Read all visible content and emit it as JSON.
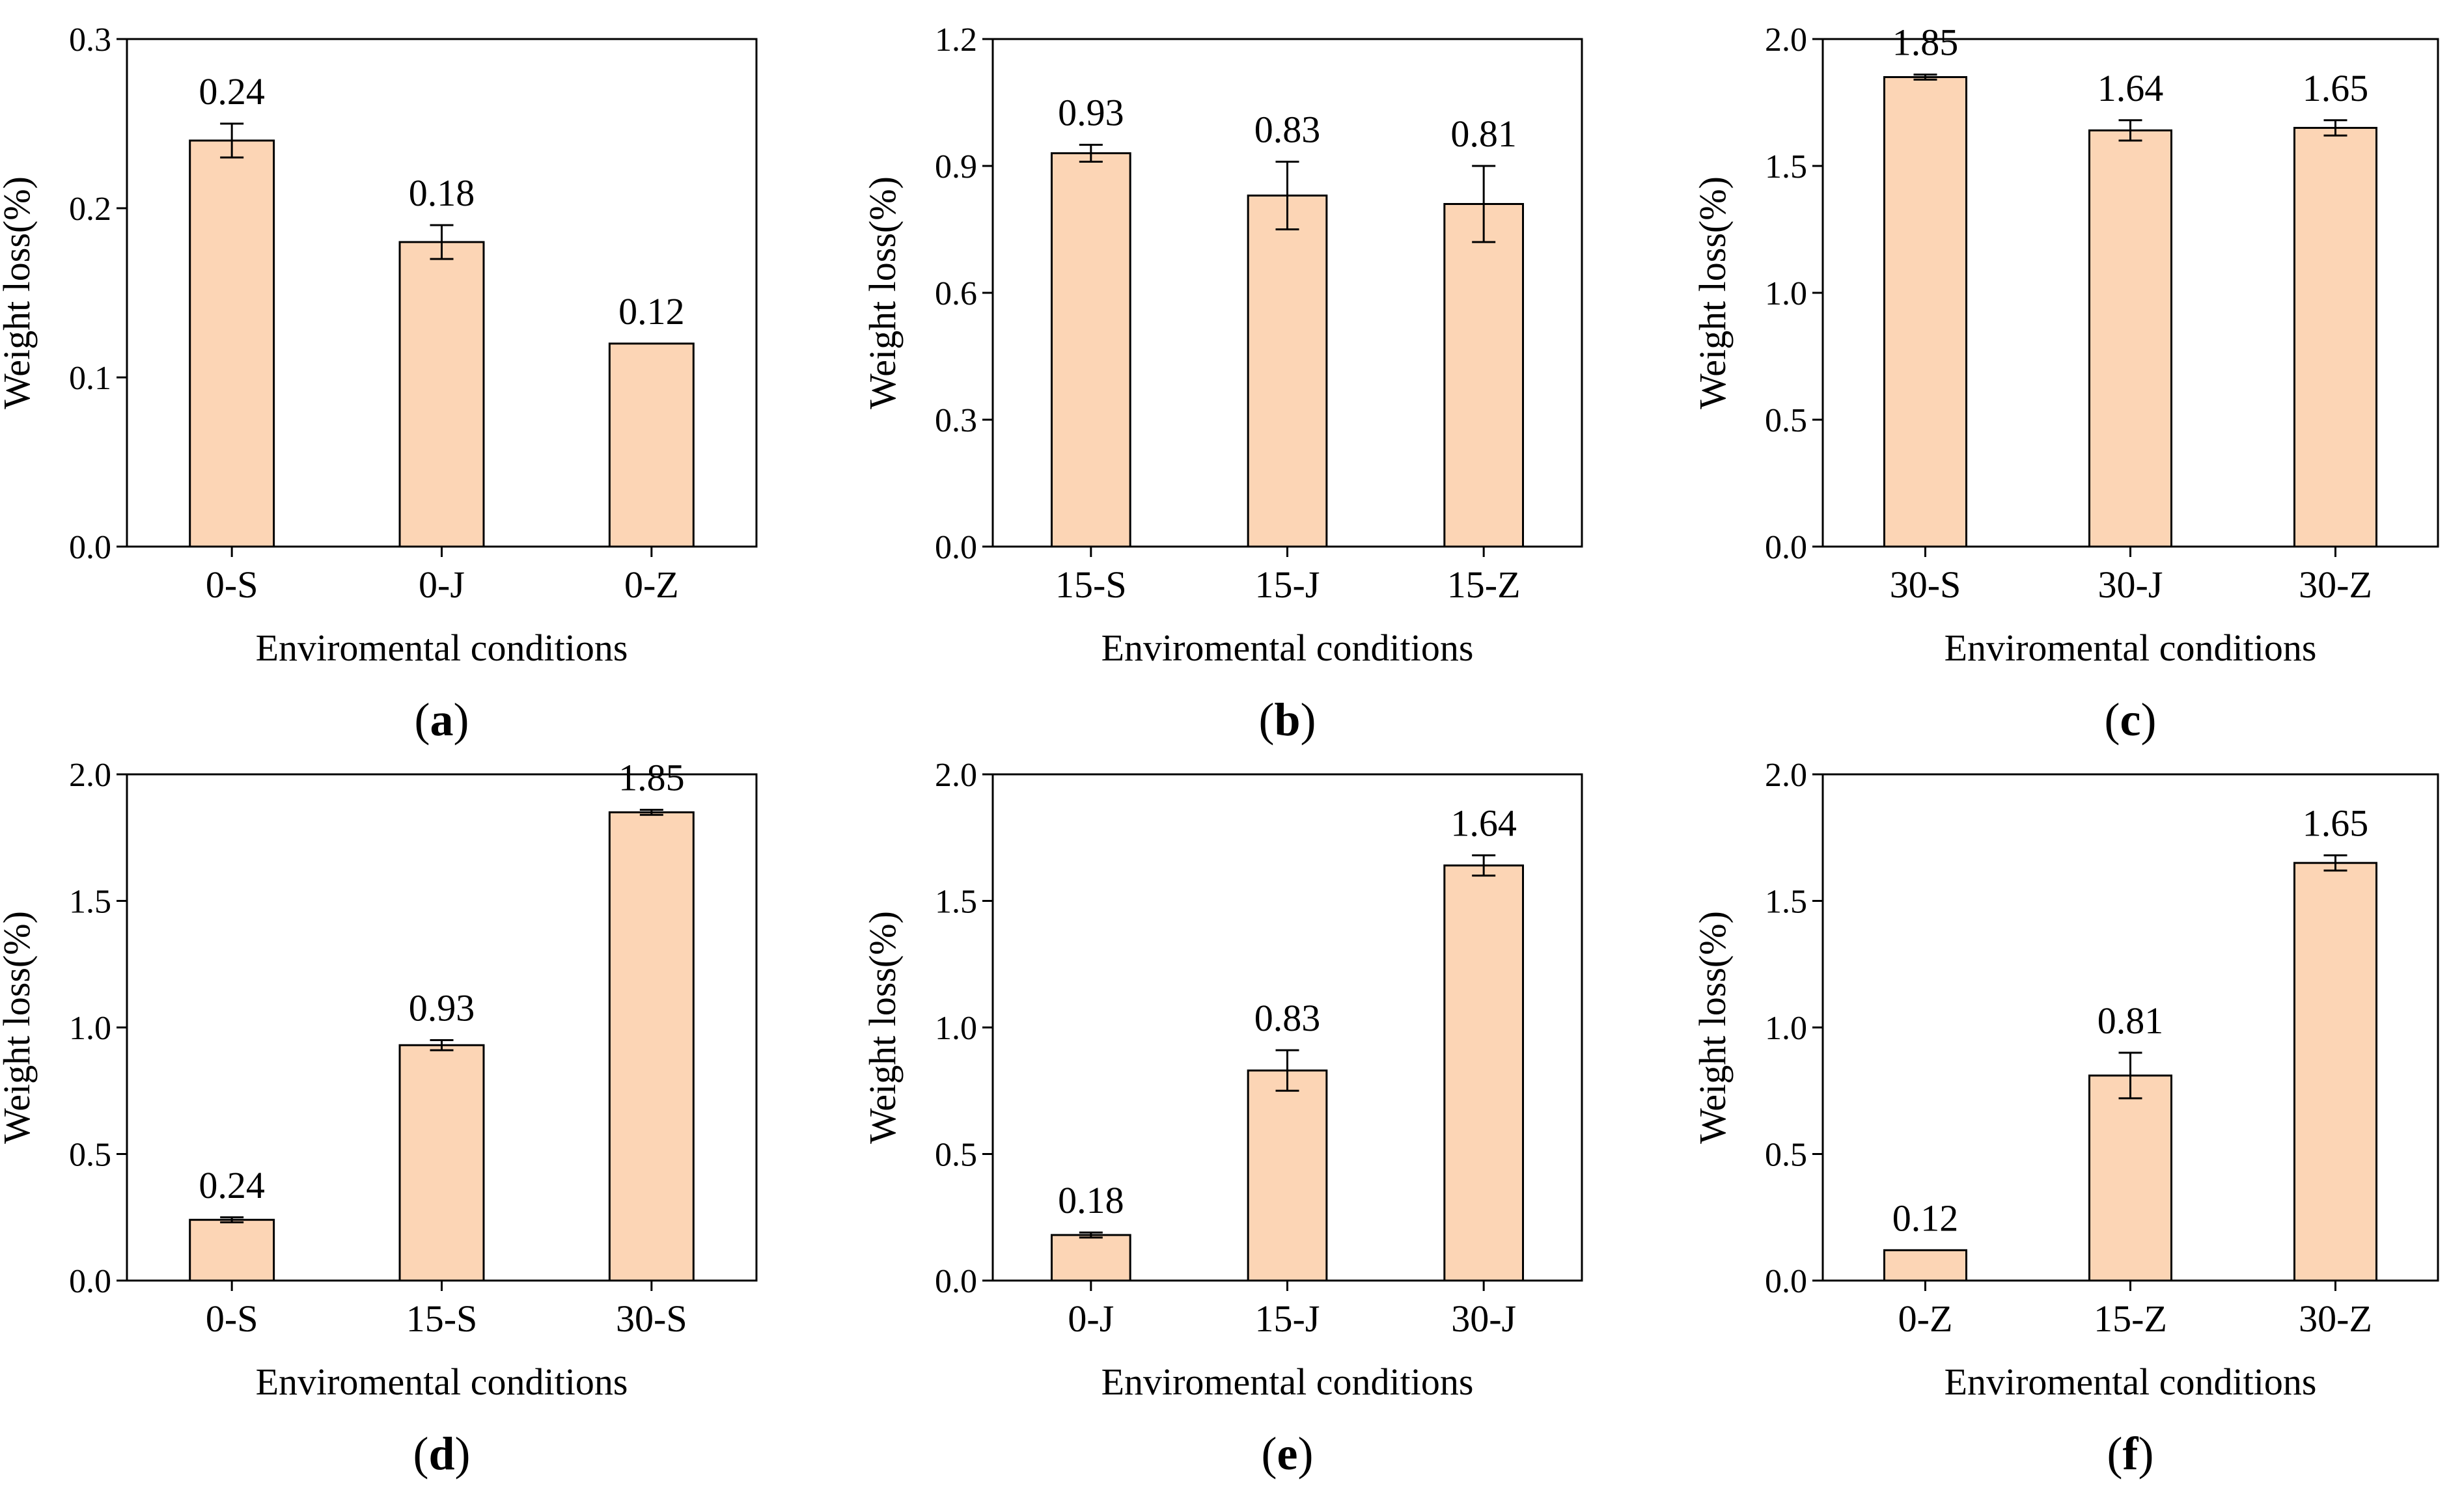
{
  "colors": {
    "bar_fill": "#FCD5B5",
    "bar_stroke": "#000000",
    "axis": "#000000",
    "background": "#FFFFFF"
  },
  "chart_data": [
    {
      "type": "bar",
      "panel": "a",
      "caption": {
        "open": "(",
        "letter": "a",
        "close": ")"
      },
      "categories": [
        "0-S",
        "0-J",
        "0-Z"
      ],
      "values": [
        0.24,
        0.18,
        0.12
      ],
      "value_labels": [
        "0.24",
        "0.18",
        "0.12"
      ],
      "errors": [
        0.01,
        0.01,
        0.0
      ],
      "xlabel": "Enviromental conditions",
      "ylabel": "Weight loss(%)",
      "ylim": [
        0,
        0.3
      ],
      "yticks": [
        "0.0",
        "0.1",
        "0.2",
        "0.3"
      ],
      "grid": false,
      "legend": "none"
    },
    {
      "type": "bar",
      "panel": "b",
      "caption": {
        "open": "(",
        "letter": "b",
        "close": ")"
      },
      "categories": [
        "15-S",
        "15-J",
        "15-Z"
      ],
      "values": [
        0.93,
        0.83,
        0.81
      ],
      "value_labels": [
        "0.93",
        "0.83",
        "0.81"
      ],
      "errors": [
        0.02,
        0.08,
        0.09
      ],
      "xlabel": "Enviromental conditions",
      "ylabel": "Weight loss(%)",
      "ylim": [
        0,
        1.2
      ],
      "yticks": [
        "0.0",
        "0.3",
        "0.6",
        "0.9",
        "1.2"
      ],
      "grid": false,
      "legend": "none"
    },
    {
      "type": "bar",
      "panel": "c",
      "caption": {
        "open": "(",
        "letter": "c",
        "close": ")"
      },
      "categories": [
        "30-S",
        "30-J",
        "30-Z"
      ],
      "values": [
        1.85,
        1.64,
        1.65
      ],
      "value_labels": [
        "1.85",
        "1.64",
        "1.65"
      ],
      "errors": [
        0.01,
        0.04,
        0.03
      ],
      "xlabel": "Enviromental conditions",
      "ylabel": "Weight loss(%)",
      "ylim": [
        0,
        2.0
      ],
      "yticks": [
        "0.0",
        "0.5",
        "1.0",
        "1.5",
        "2.0"
      ],
      "grid": false,
      "legend": "none"
    },
    {
      "type": "bar",
      "panel": "d",
      "caption": {
        "open": "(",
        "letter": "d",
        "close": ")"
      },
      "categories": [
        "0-S",
        "15-S",
        "30-S"
      ],
      "values": [
        0.24,
        0.93,
        1.85
      ],
      "value_labels": [
        "0.24",
        "0.93",
        "1.85"
      ],
      "errors": [
        0.01,
        0.02,
        0.01
      ],
      "xlabel": "Enviromental conditions",
      "ylabel": "Weight loss(%)",
      "ylim": [
        0,
        2.0
      ],
      "yticks": [
        "0.0",
        "0.5",
        "1.0",
        "1.5",
        "2.0"
      ],
      "grid": false,
      "legend": "none"
    },
    {
      "type": "bar",
      "panel": "e",
      "caption": {
        "open": "(",
        "letter": "e",
        "close": ")"
      },
      "categories": [
        "0-J",
        "15-J",
        "30-J"
      ],
      "values": [
        0.18,
        0.83,
        1.64
      ],
      "value_labels": [
        "0.18",
        "0.83",
        "1.64"
      ],
      "errors": [
        0.01,
        0.08,
        0.04
      ],
      "xlabel": "Enviromental conditions",
      "ylabel": "Weight loss(%)",
      "ylim": [
        0,
        2.0
      ],
      "yticks": [
        "0.0",
        "0.5",
        "1.0",
        "1.5",
        "2.0"
      ],
      "grid": false,
      "legend": "none"
    },
    {
      "type": "bar",
      "panel": "f",
      "caption": {
        "open": "(",
        "letter": "f",
        "close": ")"
      },
      "categories": [
        "0-Z",
        "15-Z",
        "30-Z"
      ],
      "values": [
        0.12,
        0.81,
        1.65
      ],
      "value_labels": [
        "0.12",
        "0.81",
        "1.65"
      ],
      "errors": [
        0.0,
        0.09,
        0.03
      ],
      "xlabel": "Enviromental conditions",
      "ylabel": "Weight loss(%)",
      "ylim": [
        0,
        2.0
      ],
      "yticks": [
        "0.0",
        "0.5",
        "1.0",
        "1.5",
        "2.0"
      ],
      "grid": false,
      "legend": "none"
    }
  ]
}
